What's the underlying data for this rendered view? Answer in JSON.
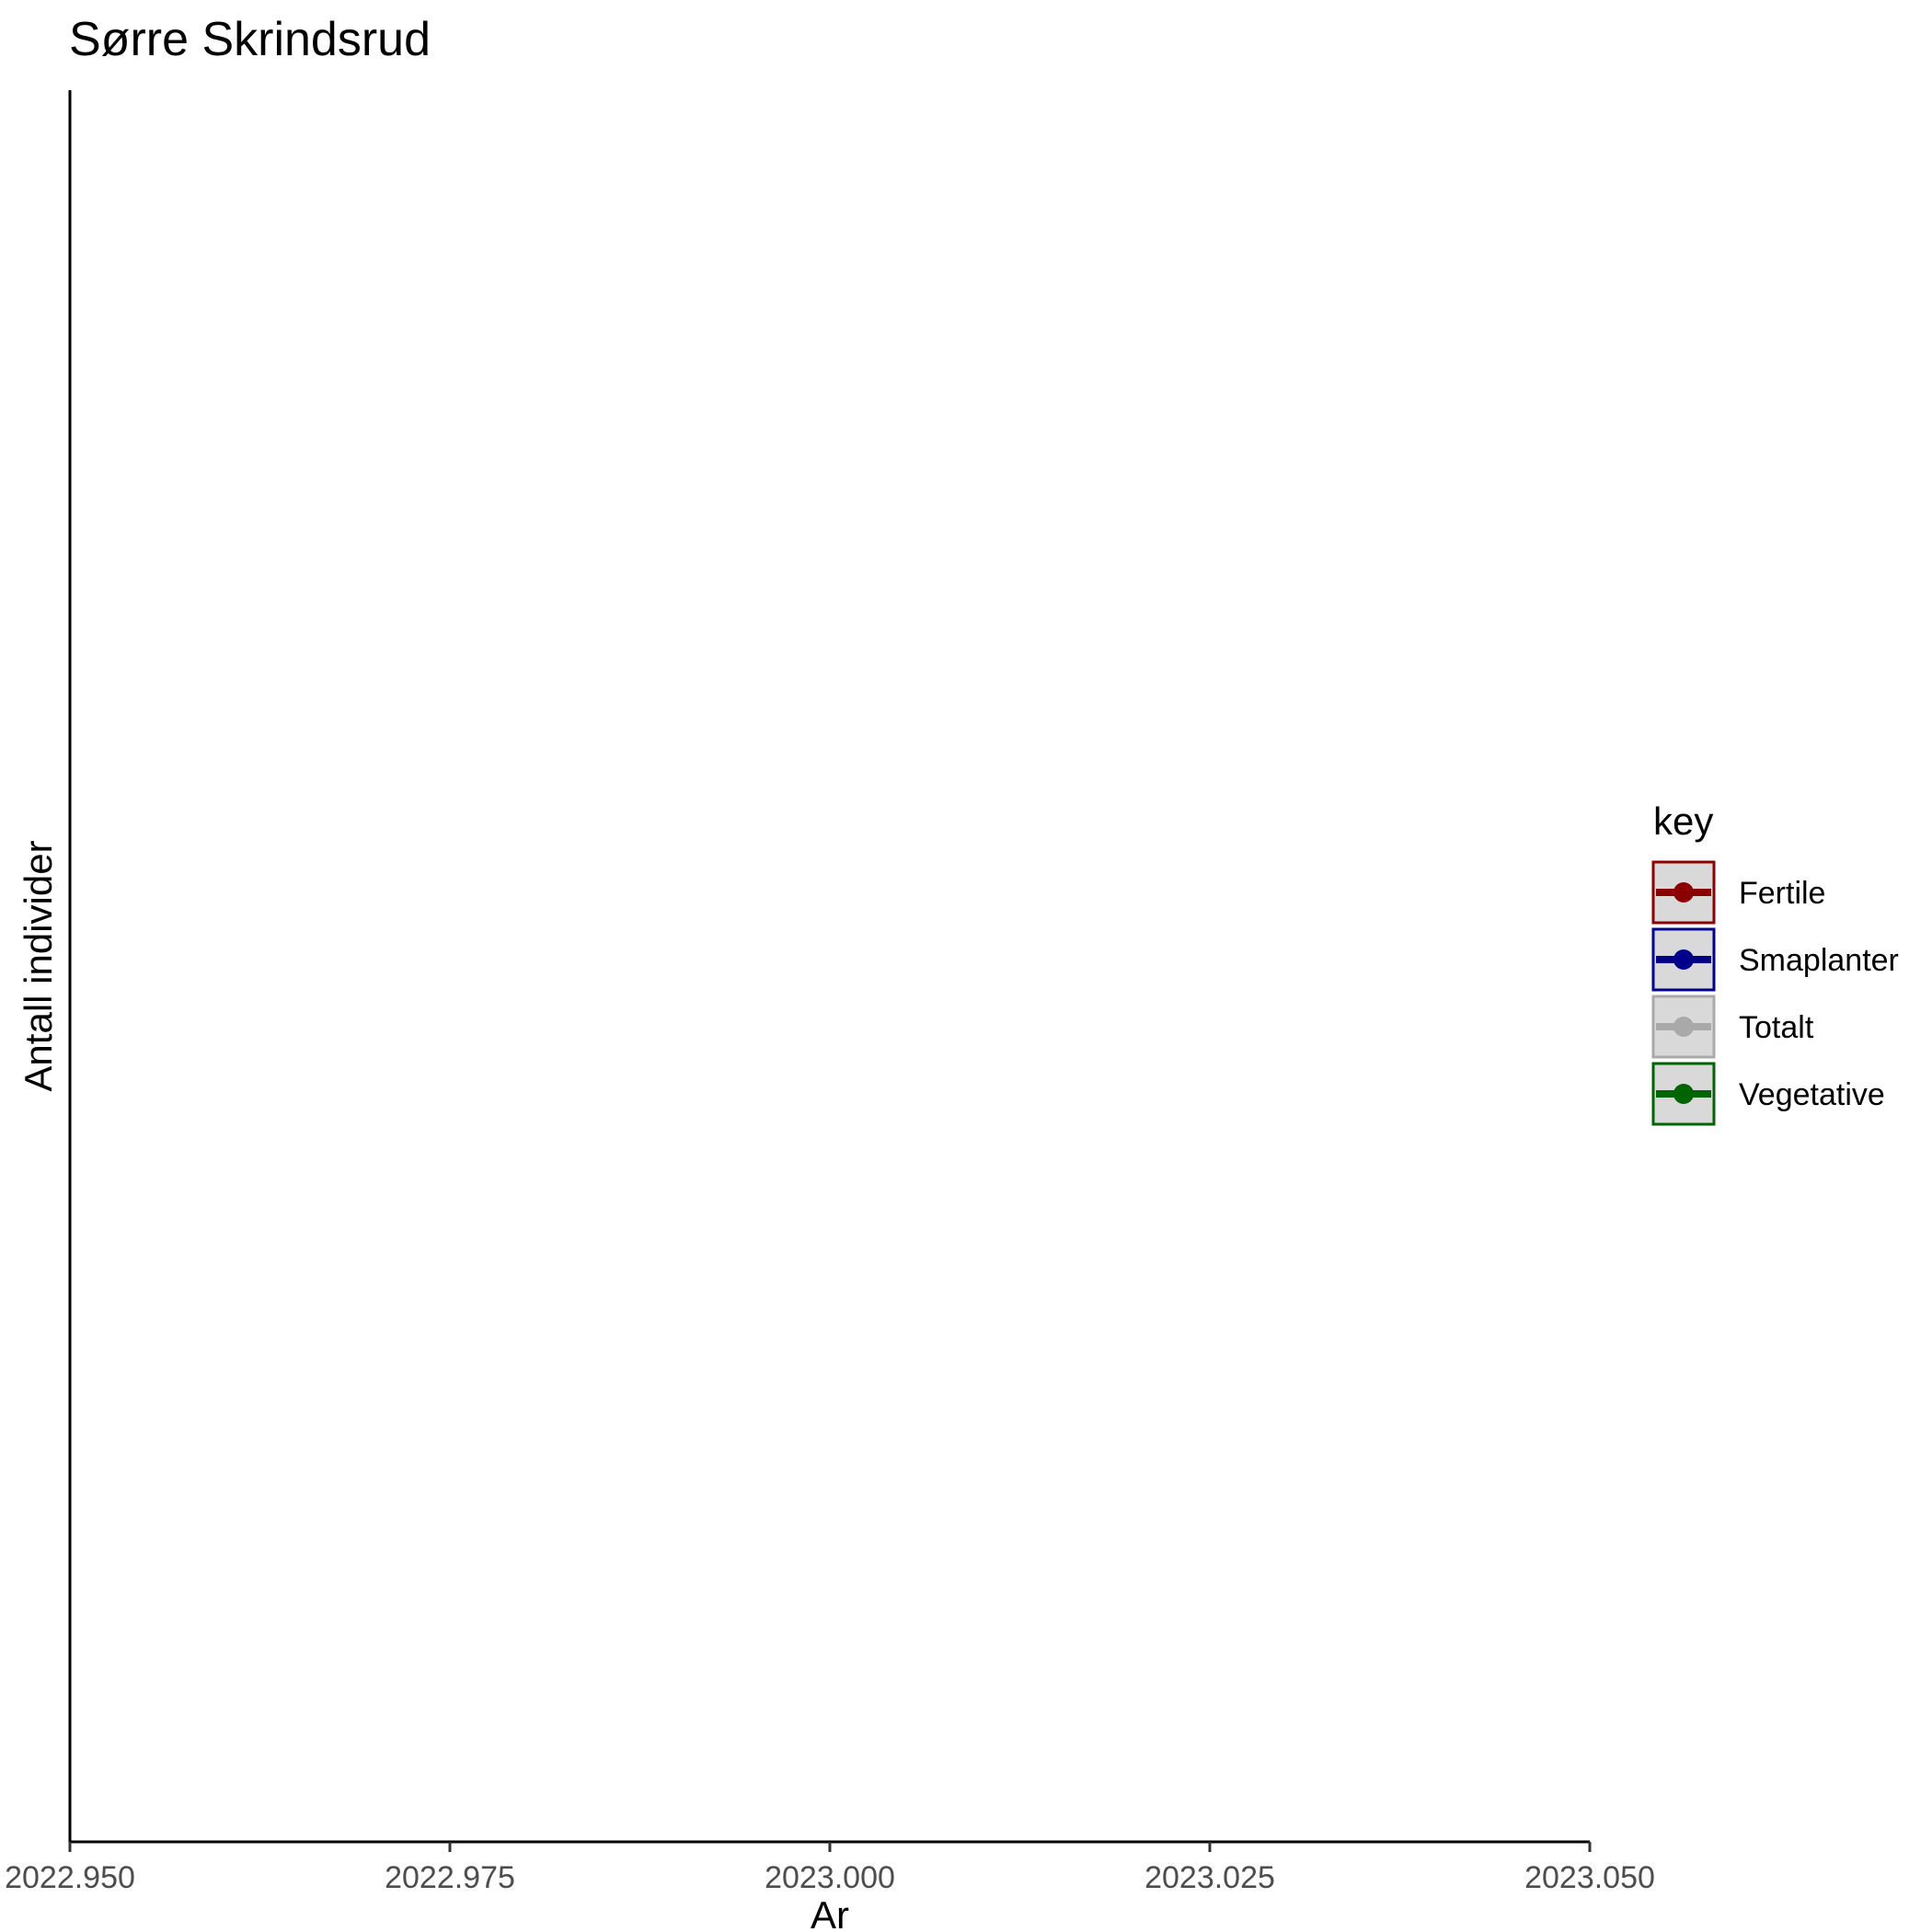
{
  "chart_data": {
    "type": "line",
    "title": "Sørre Skrindsrud",
    "xlabel": "Ar",
    "ylabel": "Antall individer",
    "xlim": [
      2022.95,
      2023.05
    ],
    "x_ticks": [
      "2022.950",
      "2022.975",
      "2023.000",
      "2023.025",
      "2023.050"
    ],
    "x_tick_values": [
      2022.95,
      2022.975,
      2023.0,
      2023.025,
      2023.05
    ],
    "grid": false,
    "legend": {
      "title": "key",
      "placement": "right",
      "entries": [
        {
          "name": "Fertile",
          "color": "#8B0000"
        },
        {
          "name": "Smaplanter",
          "color": "#00008B"
        },
        {
          "name": "Totalt",
          "color": "#A9A9A9"
        },
        {
          "name": "Vegetative",
          "color": "#006400"
        }
      ]
    },
    "series": [
      {
        "name": "Fertile",
        "values": []
      },
      {
        "name": "Smaplanter",
        "values": []
      },
      {
        "name": "Totalt",
        "values": []
      },
      {
        "name": "Vegetative",
        "values": []
      }
    ]
  }
}
